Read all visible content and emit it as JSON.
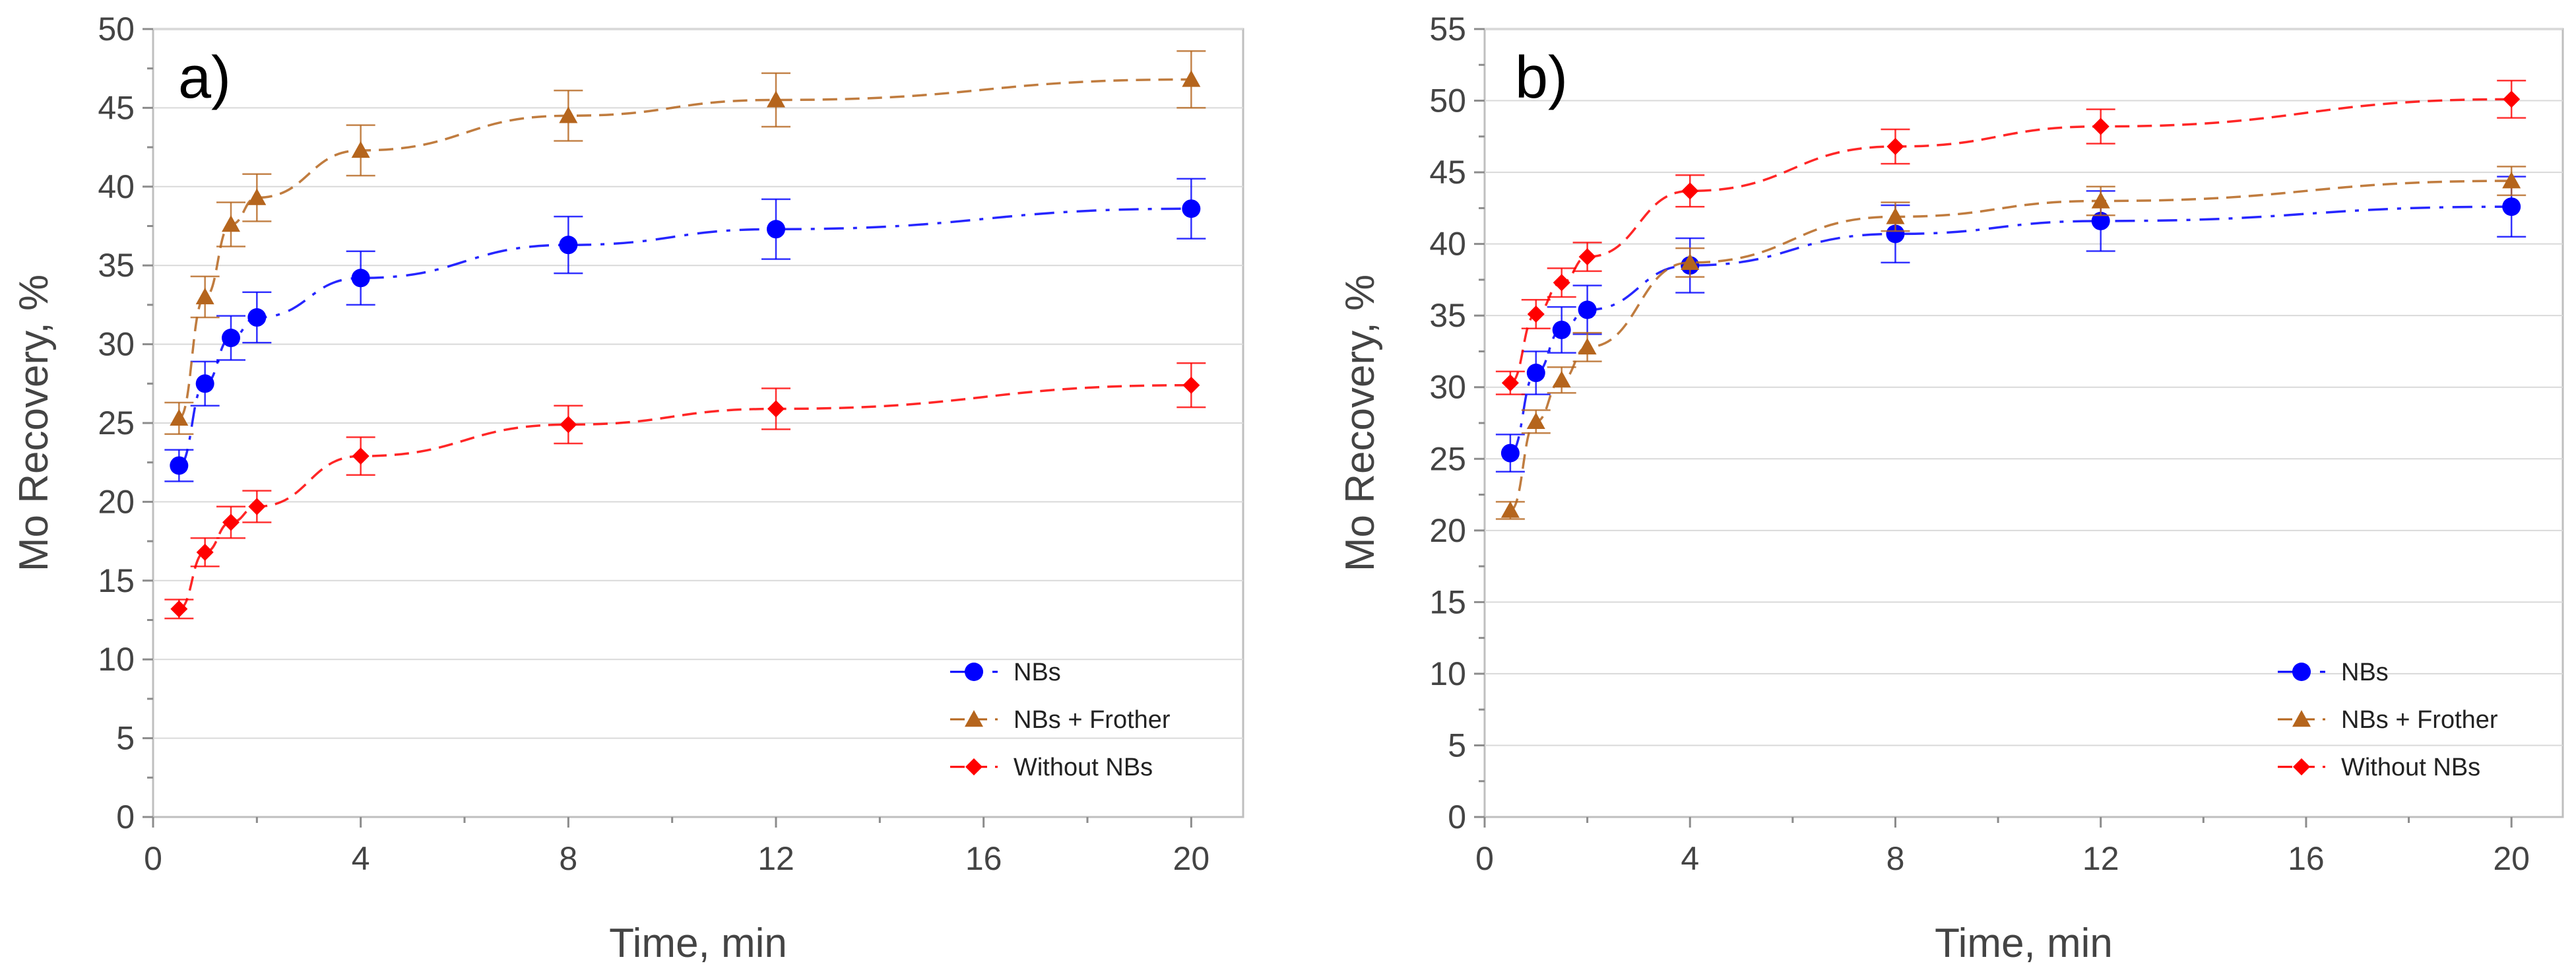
{
  "chart_data": [
    {
      "type": "scatter",
      "panel_label": "a)",
      "xlabel": "Time, min",
      "ylabel": "Mo Recovery, %",
      "xlim": [
        0,
        21
      ],
      "ylim": [
        0,
        50
      ],
      "xticks": [
        0,
        4,
        8,
        12,
        16,
        20
      ],
      "yticks": [
        0,
        5,
        10,
        15,
        20,
        25,
        30,
        35,
        40,
        45,
        50
      ],
      "grid": true,
      "legend_position": "bottom-right",
      "series": [
        {
          "name": "NBs",
          "color": "#0000ff",
          "marker": "circle",
          "line": "dash-dot",
          "x": [
            0.5,
            1,
            1.5,
            2,
            4,
            8,
            12,
            20
          ],
          "y": [
            22.3,
            27.5,
            30.4,
            31.7,
            34.2,
            36.3,
            37.3,
            38.6
          ],
          "err": [
            1.0,
            1.4,
            1.4,
            1.6,
            1.7,
            1.8,
            1.9,
            1.9
          ]
        },
        {
          "name": "NBs + Frother",
          "color": "#b5651d",
          "marker": "triangle",
          "line": "dashed",
          "x": [
            0.5,
            1,
            1.5,
            2,
            4,
            8,
            12,
            20
          ],
          "y": [
            25.3,
            33.0,
            37.6,
            39.3,
            42.3,
            44.5,
            45.5,
            46.8
          ],
          "err": [
            1.0,
            1.3,
            1.4,
            1.5,
            1.6,
            1.6,
            1.7,
            1.8
          ]
        },
        {
          "name": "Without NBs",
          "color": "#ff0000",
          "marker": "diamond",
          "line": "dashed",
          "x": [
            0.5,
            1,
            1.5,
            2,
            4,
            8,
            12,
            20
          ],
          "y": [
            13.2,
            16.8,
            18.7,
            19.7,
            22.9,
            24.9,
            25.9,
            27.4
          ],
          "err": [
            0.6,
            0.9,
            1.0,
            1.0,
            1.2,
            1.2,
            1.3,
            1.4
          ]
        }
      ]
    },
    {
      "type": "scatter",
      "panel_label": "b)",
      "xlabel": "Time, min",
      "ylabel": "Mo Recovery, %",
      "xlim": [
        0,
        21
      ],
      "ylim": [
        0,
        55
      ],
      "xticks": [
        0,
        4,
        8,
        12,
        16,
        20
      ],
      "yticks": [
        0,
        5,
        10,
        15,
        20,
        25,
        30,
        35,
        40,
        45,
        50,
        55
      ],
      "grid": true,
      "legend_position": "bottom-right",
      "series": [
        {
          "name": "NBs",
          "color": "#0000ff",
          "marker": "circle",
          "line": "dash-dot",
          "x": [
            0.5,
            1,
            1.5,
            2,
            4,
            8,
            12,
            20
          ],
          "y": [
            25.4,
            31.0,
            34.0,
            35.4,
            38.5,
            40.7,
            41.6,
            42.6
          ],
          "err": [
            1.3,
            1.5,
            1.6,
            1.7,
            1.9,
            2.0,
            2.1,
            2.1
          ]
        },
        {
          "name": "NBs + Frother",
          "color": "#b5651d",
          "marker": "triangle",
          "line": "dashed",
          "x": [
            0.5,
            1,
            1.5,
            2,
            4,
            8,
            12,
            20
          ],
          "y": [
            21.4,
            27.6,
            30.5,
            32.8,
            38.7,
            41.9,
            43.0,
            44.4
          ],
          "err": [
            0.6,
            0.8,
            0.9,
            1.0,
            1.0,
            1.0,
            1.0,
            1.0
          ]
        },
        {
          "name": "Without NBs",
          "color": "#ff0000",
          "marker": "diamond",
          "line": "dashed",
          "x": [
            0.5,
            1,
            1.5,
            2,
            4,
            8,
            12,
            20
          ],
          "y": [
            30.3,
            35.1,
            37.3,
            39.1,
            43.7,
            46.8,
            48.2,
            50.1
          ],
          "err": [
            0.8,
            1.0,
            1.0,
            1.0,
            1.1,
            1.2,
            1.2,
            1.3
          ]
        }
      ]
    }
  ]
}
